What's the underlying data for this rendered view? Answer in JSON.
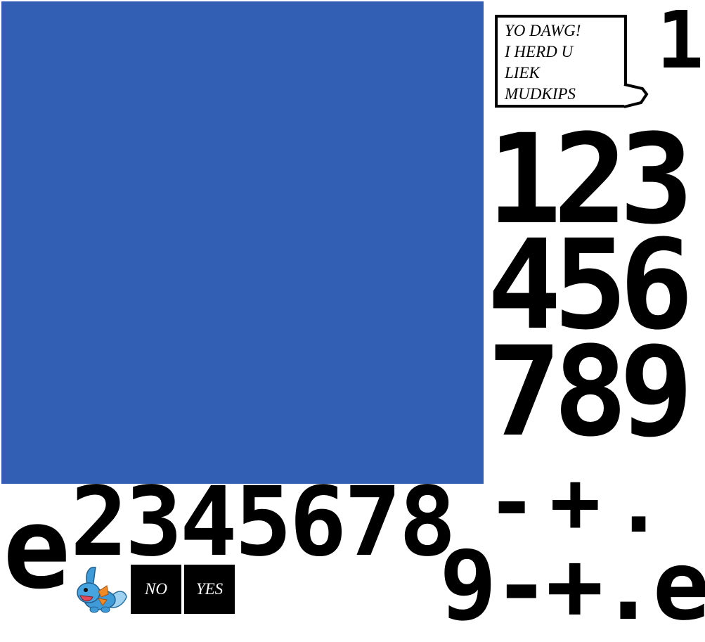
{
  "bubble": {
    "lines": [
      "YO DAWG!",
      "I HERD U",
      "LIEK",
      "MUDKIPS"
    ]
  },
  "top_digit": "1",
  "keypad": {
    "row1": "123",
    "row2": "456",
    "row3": "789"
  },
  "ops_row": "-+.",
  "bottom_sequence": "2345678",
  "e_left": "e",
  "bottom_right": "9-+.e",
  "buttons": {
    "no": "NO",
    "yes": "YES"
  },
  "colors": {
    "panel": "#325fb3",
    "ink": "#000000",
    "background": "#ffffff"
  },
  "icons": {
    "character": "mudkip-icon"
  }
}
